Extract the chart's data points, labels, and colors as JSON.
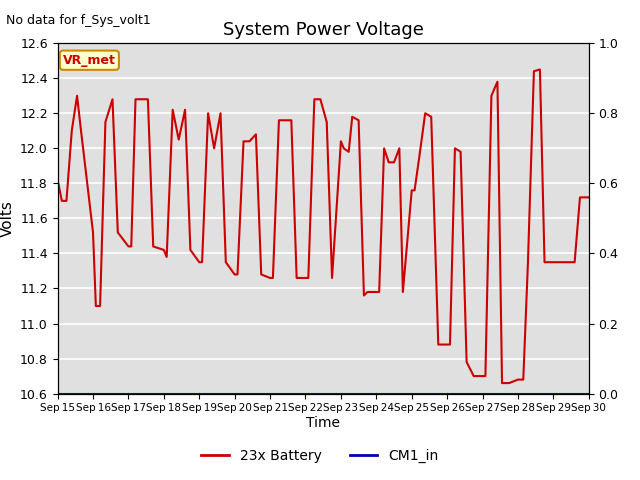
{
  "title": "System Power Voltage",
  "top_left_text": "No data for f_Sys_volt1",
  "ylabel_left": "Volts",
  "xlabel": "Time",
  "ylim_left": [
    10.6,
    12.6
  ],
  "ylim_right": [
    0.0,
    1.0
  ],
  "background_color": "#ffffff",
  "plot_bg_color": "#e0e0e0",
  "grid_color": "#ffffff",
  "line_color": "#cc0000",
  "cm1_color": "#0000bb",
  "legend_entries": [
    "23x Battery",
    "CM1_in"
  ],
  "vr_met_label": "VR_met",
  "vr_met_bg": "#ffffcc",
  "vr_met_border": "#cc8800",
  "vr_met_text_color": "#cc0000",
  "x_tick_labels": [
    "Sep 15",
    "Sep 16",
    "Sep 17",
    "Sep 18",
    "Sep 19",
    "Sep 20",
    "Sep 21",
    "Sep 22",
    "Sep 23",
    "Sep 24",
    "Sep 25",
    "Sep 26",
    "Sep 27",
    "Sep 28",
    "Sep 29",
    "Sep 30"
  ],
  "left_ticks": [
    10.6,
    10.8,
    11.0,
    11.2,
    11.4,
    11.6,
    11.8,
    12.0,
    12.2,
    12.4,
    12.6
  ],
  "right_ticks": [
    0.0,
    0.2,
    0.4,
    0.6,
    0.8,
    1.0
  ],
  "batt_x": [
    0.0,
    0.12,
    0.25,
    0.4,
    0.55,
    0.65,
    1.0,
    1.08,
    1.2,
    1.35,
    1.55,
    1.7,
    2.0,
    2.08,
    2.2,
    2.38,
    2.55,
    2.7,
    3.0,
    3.08,
    3.25,
    3.42,
    3.6,
    3.75,
    4.0,
    4.08,
    4.25,
    4.42,
    4.6,
    4.75,
    5.0,
    5.08,
    5.25,
    5.42,
    5.6,
    5.75,
    6.0,
    6.08,
    6.25,
    6.42,
    6.6,
    6.75,
    7.0,
    7.08,
    7.25,
    7.42,
    7.6,
    7.75,
    8.0,
    8.08,
    8.22,
    8.32,
    8.5,
    8.65,
    8.75,
    9.0,
    9.08,
    9.22,
    9.35,
    9.5,
    9.65,
    9.75,
    10.0,
    10.08,
    10.22,
    10.38,
    10.55,
    10.75,
    11.0,
    11.08,
    11.22,
    11.38,
    11.55,
    11.75,
    12.0,
    12.08,
    12.25,
    12.42,
    12.55,
    12.75,
    13.0,
    13.05,
    13.15,
    13.28,
    13.45,
    13.62,
    13.75,
    14.0,
    14.08,
    14.25,
    14.42,
    14.6,
    14.75,
    15.0
  ],
  "batt_y": [
    11.82,
    11.7,
    11.7,
    12.1,
    12.3,
    12.12,
    11.52,
    11.1,
    11.1,
    12.15,
    12.28,
    11.52,
    11.44,
    11.44,
    12.28,
    12.28,
    12.28,
    11.44,
    11.42,
    11.38,
    12.22,
    12.05,
    12.22,
    11.42,
    11.35,
    11.35,
    12.2,
    12.0,
    12.2,
    11.35,
    11.28,
    11.28,
    12.04,
    12.04,
    12.08,
    11.28,
    11.26,
    11.26,
    12.16,
    12.16,
    12.16,
    11.26,
    11.26,
    11.26,
    12.28,
    12.28,
    12.15,
    11.26,
    12.04,
    12.0,
    11.98,
    12.18,
    12.16,
    11.16,
    11.18,
    11.18,
    11.18,
    12.0,
    11.92,
    11.92,
    12.0,
    11.18,
    11.76,
    11.76,
    11.96,
    12.2,
    12.18,
    10.88,
    10.88,
    10.88,
    12.0,
    11.98,
    10.78,
    10.7,
    10.7,
    10.7,
    12.3,
    12.38,
    10.66,
    10.66,
    10.68,
    10.68,
    10.68,
    11.34,
    12.44,
    12.45,
    11.35,
    11.35,
    11.35,
    11.35,
    11.35,
    11.35,
    11.72,
    11.72
  ]
}
